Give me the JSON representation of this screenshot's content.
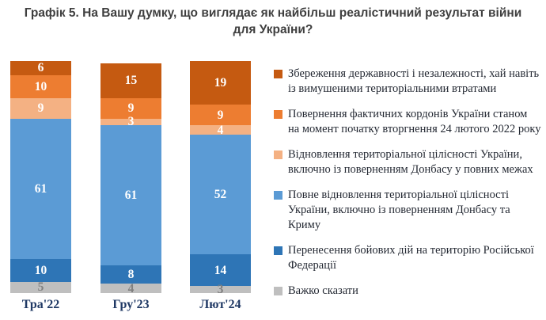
{
  "title": "Графік 5. На Вашу думку, що виглядає як найбільш реалістичний результат війни для України?",
  "colors": {
    "title_text": "#3f3f3f",
    "axis_label_text": "#1f3864",
    "legend_text": "#242933",
    "background": "#ffffff",
    "muted_value_label": "#808080",
    "value_label": "#ffffff"
  },
  "chart_data": {
    "type": "bar",
    "subtype": "stacked-vertical",
    "categories": [
      "Тра'22",
      "Гру'23",
      "Лют'24"
    ],
    "series": [
      {
        "name": "Збереження державності і незалежності, хай навіть із вимушеними територіальними втратами",
        "color": "#c55a11",
        "label_color": "#ffffff",
        "values": [
          6,
          15,
          19
        ]
      },
      {
        "name": "Повернення фактичних кордонів України станом на момент початку вторгнення 24 лютого 2022 року",
        "color": "#ed7d31",
        "label_color": "#ffffff",
        "values": [
          10,
          9,
          9
        ]
      },
      {
        "name": "Відновлення територіальної цілісності України, включно із поверненням Донбасу у повних межах",
        "color": "#f4b183",
        "label_color": "#ffffff",
        "values": [
          9,
          3,
          4
        ]
      },
      {
        "name": "Повне відновлення територіальної цілісності України, включно із поверненням Донбасу та Криму",
        "color": "#5b9bd5",
        "label_color": "#ffffff",
        "values": [
          61,
          61,
          52
        ]
      },
      {
        "name": "Перенесення бойових дій на територію Російської Федерації",
        "color": "#2e75b6",
        "label_color": "#ffffff",
        "values": [
          10,
          8,
          14
        ]
      },
      {
        "name": "Важко сказати",
        "color": "#bfbfbf",
        "label_color": "#808080",
        "values": [
          5,
          4,
          3
        ]
      }
    ],
    "ylim": [
      0,
      100
    ],
    "axes_hidden": true,
    "grid": false,
    "legend_position": "right",
    "value_labels": "inside-center"
  }
}
